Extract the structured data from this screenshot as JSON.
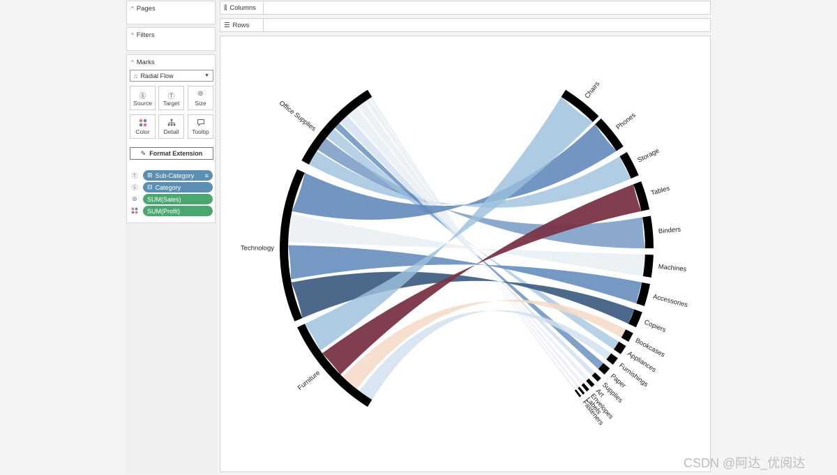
{
  "sidebar": {
    "pages": {
      "title": "Pages"
    },
    "filters": {
      "title": "Filters"
    },
    "marks": {
      "title": "Marks",
      "mark_type": "Radial Flow",
      "buttons": [
        {
          "label": "Source",
          "icon": "Ⓢ"
        },
        {
          "label": "Target",
          "icon": "Ⓣ"
        },
        {
          "label": "Size",
          "icon": "⊚"
        },
        {
          "label": "Color",
          "icon": "⁘"
        },
        {
          "label": "Detail",
          "icon": "⋔"
        },
        {
          "label": "Tooltip",
          "icon": "▭"
        }
      ],
      "format_label": "Format Extension",
      "fields": [
        {
          "icon": "Ⓣ",
          "label": "Sub-Category",
          "kind": "dimension"
        },
        {
          "icon": "Ⓢ",
          "label": "Category",
          "kind": "dimension"
        },
        {
          "icon": "⊚",
          "label": "SUM(Sales)",
          "kind": "measure"
        },
        {
          "icon": "⁘",
          "label": "SUM(Profit)",
          "kind": "measure"
        }
      ]
    }
  },
  "shelves": {
    "columns": "Columns",
    "rows": "Rows"
  },
  "watermark": "CSDN @阿达_优阅达",
  "chart_data": {
    "type": "radial-flow",
    "sources": [
      {
        "name": "Office Supplies"
      },
      {
        "name": "Technology"
      },
      {
        "name": "Furniture"
      }
    ],
    "targets": [
      {
        "name": "Chairs",
        "category": "Furniture"
      },
      {
        "name": "Phones",
        "category": "Technology"
      },
      {
        "name": "Storage",
        "category": "Office Supplies"
      },
      {
        "name": "Tables",
        "category": "Furniture"
      },
      {
        "name": "Binders",
        "category": "Office Supplies"
      },
      {
        "name": "Machines",
        "category": "Technology"
      },
      {
        "name": "Accessories",
        "category": "Technology"
      },
      {
        "name": "Copiers",
        "category": "Technology"
      },
      {
        "name": "Bookcases",
        "category": "Furniture"
      },
      {
        "name": "Appliances",
        "category": "Office Supplies"
      },
      {
        "name": "Furnishings",
        "category": "Furniture"
      },
      {
        "name": "Paper",
        "category": "Office Supplies"
      },
      {
        "name": "Supplies",
        "category": "Office Supplies"
      },
      {
        "name": "Art",
        "category": "Office Supplies"
      },
      {
        "name": "Envelopes",
        "category": "Office Supplies"
      },
      {
        "name": "Labels",
        "category": "Office Supplies"
      },
      {
        "name": "Fasteners",
        "category": "Office Supplies"
      }
    ],
    "palette": {
      "deep_blue": "#39597f",
      "blue": "#5e88b8",
      "light_blue": "#9bbfdc",
      "pale_blue": "#d2e1ef",
      "near_white": "#eaf0f5",
      "peach": "#f5d9c6",
      "maroon": "#7a3446"
    }
  }
}
